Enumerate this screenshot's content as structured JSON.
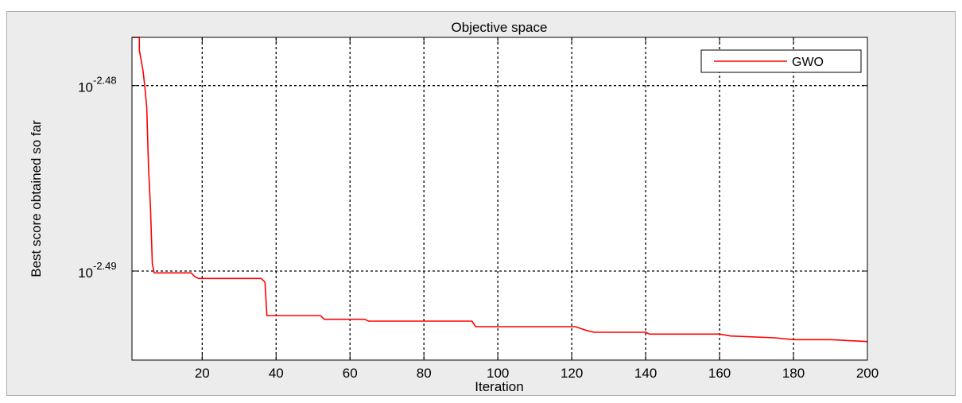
{
  "chart_data": {
    "type": "line",
    "title": "Objective space",
    "xlabel": "Iteration",
    "ylabel": "Best score obtained so far",
    "xlim": [
      1,
      200
    ],
    "ylim_log10": [
      -2.4948,
      -2.4774
    ],
    "y_scale": "log",
    "grid": true,
    "legend_position": "top-right",
    "x_ticks": [
      20,
      40,
      60,
      80,
      100,
      120,
      140,
      160,
      180,
      200
    ],
    "x_tick_labels": [
      "20",
      "40",
      "60",
      "80",
      "100",
      "120",
      "140",
      "160",
      "180",
      "200"
    ],
    "y_ticks": [
      {
        "base": "10",
        "exponent": "-2.48",
        "log10": -2.48
      },
      {
        "base": "10",
        "exponent": "-2.49",
        "log10": -2.49
      }
    ],
    "series": [
      {
        "name": "GWO",
        "color": "#ff0000",
        "points_log10": [
          [
            1,
            -2.4774
          ],
          [
            2,
            -2.4774
          ],
          [
            3,
            -2.4774
          ],
          [
            3,
            -2.4781
          ],
          [
            4,
            -2.4792
          ],
          [
            4.5,
            -2.4801
          ],
          [
            5,
            -2.4812
          ],
          [
            5.5,
            -2.4845
          ],
          [
            6,
            -2.4865
          ],
          [
            6.5,
            -2.4896
          ],
          [
            7,
            -2.4901
          ],
          [
            17,
            -2.4901
          ],
          [
            18,
            -2.4903
          ],
          [
            19,
            -2.4904
          ],
          [
            36,
            -2.4904
          ],
          [
            37,
            -2.4906
          ],
          [
            37.5,
            -2.4924
          ],
          [
            52,
            -2.4924
          ],
          [
            53,
            -2.4926
          ],
          [
            64,
            -2.4926
          ],
          [
            65,
            -2.4927
          ],
          [
            93,
            -2.4927
          ],
          [
            94,
            -2.493
          ],
          [
            121,
            -2.493
          ],
          [
            124,
            -2.4932
          ],
          [
            126,
            -2.4933
          ],
          [
            140,
            -2.4933
          ],
          [
            141,
            -2.4934
          ],
          [
            160,
            -2.4934
          ],
          [
            163,
            -2.4935
          ],
          [
            175,
            -2.4936
          ],
          [
            180,
            -2.4937
          ],
          [
            190,
            -2.4937
          ],
          [
            200,
            -2.4938
          ]
        ]
      }
    ]
  }
}
